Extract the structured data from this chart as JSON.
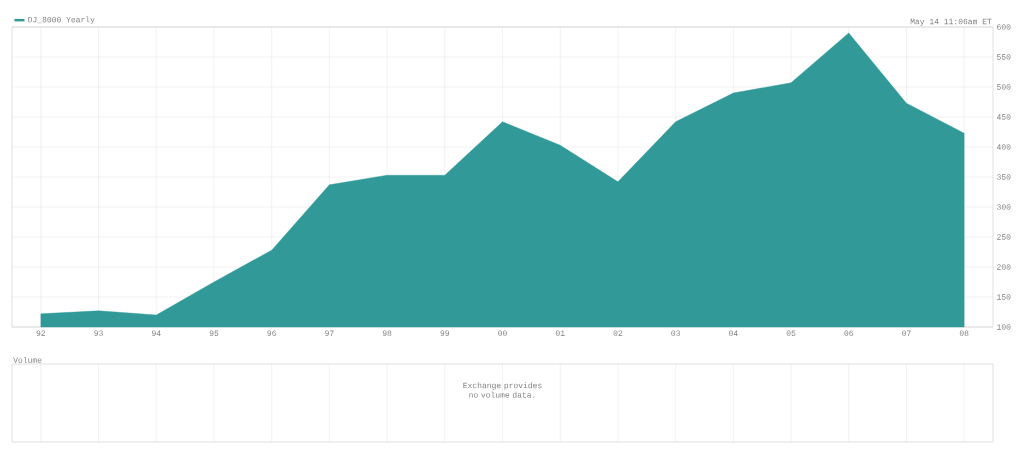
{
  "chart_data": {
    "type": "area",
    "subtitle": "May 14 11:06am ET",
    "categories": [
      "92",
      "93",
      "94",
      "95",
      "96",
      "97",
      "98",
      "99",
      "00",
      "01",
      "02",
      "03",
      "04",
      "05",
      "06",
      "07",
      "08"
    ],
    "series": [
      {
        "name": "DJ_8000 Yearly",
        "color": "#319a99",
        "values": [
          122,
          127,
          120,
          175,
          228,
          337,
          353,
          353,
          442,
          403,
          342,
          442,
          490,
          507,
          590,
          473,
          423
        ]
      }
    ],
    "ylim": [
      100,
      600
    ],
    "yticks": [
      100,
      150,
      200,
      250,
      300,
      350,
      400,
      450,
      500,
      550,
      600
    ],
    "grid": true,
    "legend": "top left",
    "annotations": [
      "Volume",
      "Exchange provides no volume data."
    ]
  }
}
